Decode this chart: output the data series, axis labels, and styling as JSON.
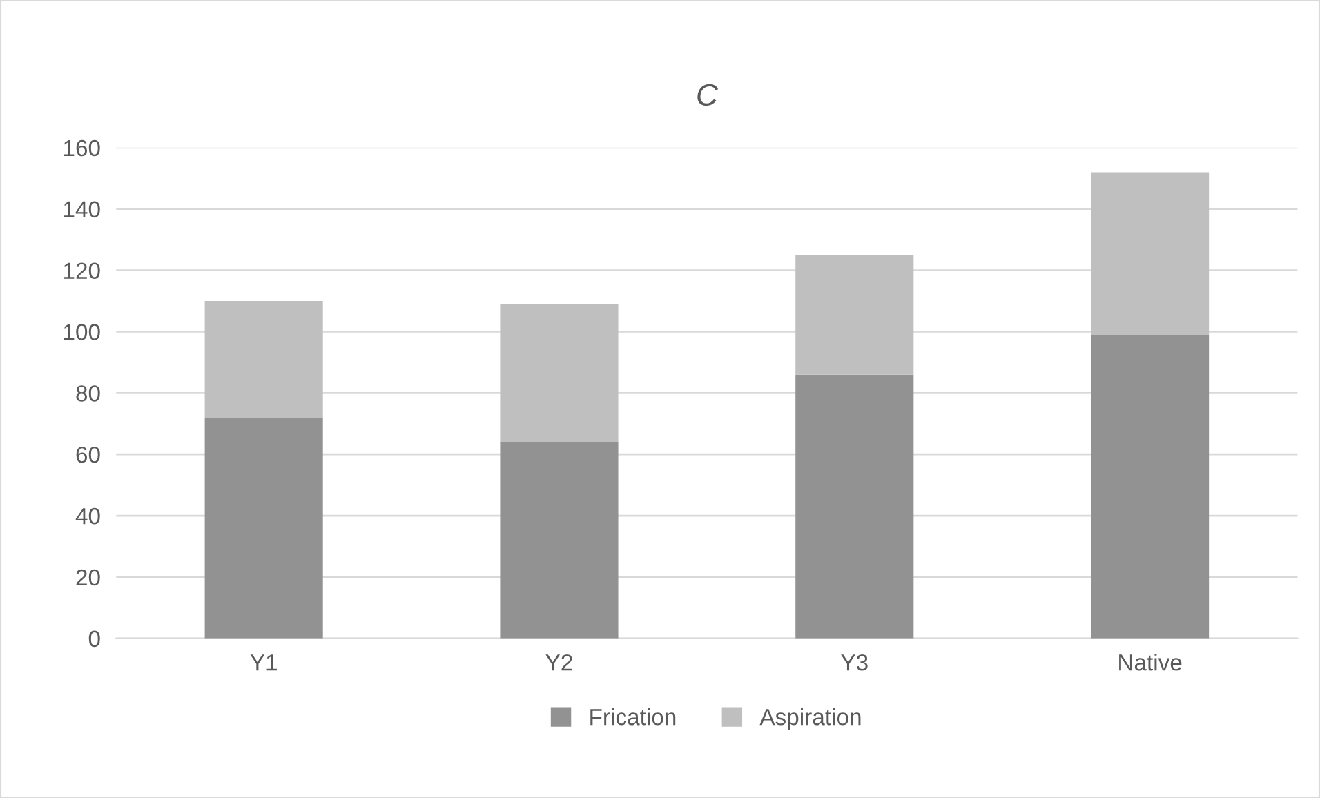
{
  "chart_data": {
    "type": "bar",
    "title": "C",
    "categories": [
      "Y1",
      "Y2",
      "Y3",
      "Native"
    ],
    "stacked": true,
    "series": [
      {
        "name": "Frication",
        "color": "#929292",
        "values": [
          72,
          64,
          86,
          99
        ]
      },
      {
        "name": "Aspiration",
        "color": "#bfbfbf",
        "values": [
          38,
          45,
          39,
          53
        ]
      }
    ],
    "ylim": [
      0,
      160
    ],
    "yticks": [
      0,
      20,
      40,
      60,
      80,
      100,
      120,
      140,
      160
    ],
    "grid": "y",
    "legend": "bottom"
  }
}
